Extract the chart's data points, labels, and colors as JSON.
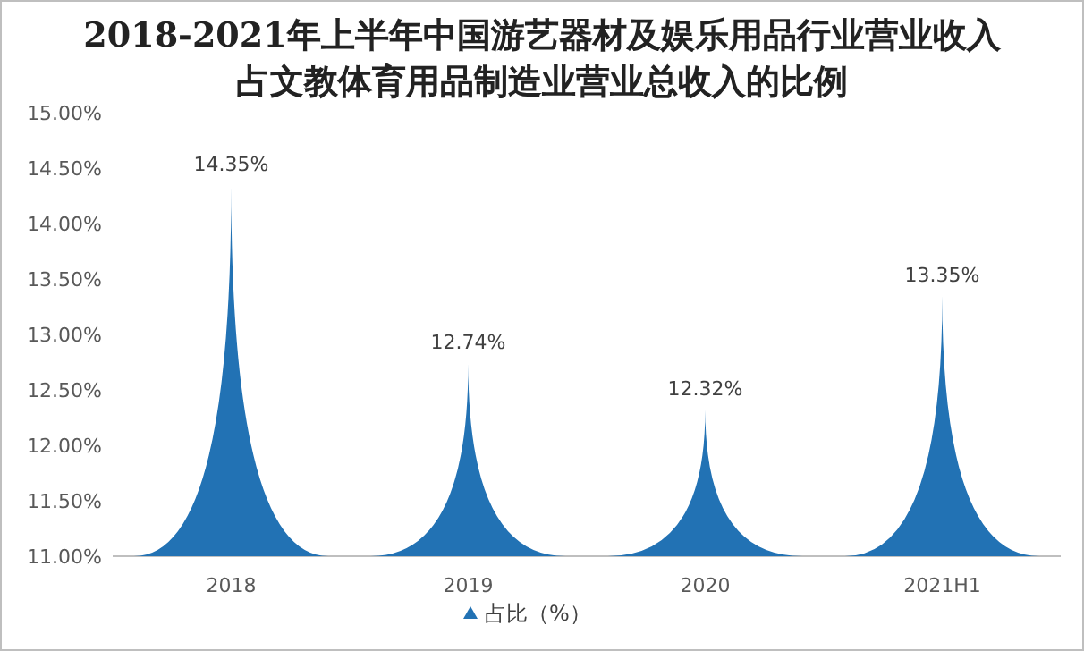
{
  "chart_data": {
    "type": "bar",
    "title": "2018-2021年上半年中国游艺器材及娱乐用品行业营业收入占文教体育用品制造业营业总收入的比例",
    "categories": [
      "2018",
      "2019",
      "2020",
      "2021H1"
    ],
    "series": [
      {
        "name": "占比（%）",
        "color": "#2272b4",
        "values": [
          14.35,
          12.74,
          12.32,
          13.35
        ],
        "value_labels": [
          "14.35%",
          "12.74%",
          "12.32%",
          "13.35%"
        ]
      }
    ],
    "ylim": [
      11,
      15
    ],
    "yticks": [
      {
        "value": 11,
        "label": "11.00%"
      },
      {
        "value": 11.5,
        "label": "11.50%"
      },
      {
        "value": 12,
        "label": "12.00%"
      },
      {
        "value": 12.5,
        "label": "12.50%"
      },
      {
        "value": 13,
        "label": "13.00%"
      },
      {
        "value": 13.5,
        "label": "13.50%"
      },
      {
        "value": 14,
        "label": "14.00%"
      },
      {
        "value": 14.5,
        "label": "14.50%"
      },
      {
        "value": 15,
        "label": "15.00%"
      }
    ],
    "grid": false,
    "legend": "bottom",
    "marker": "triangle"
  }
}
